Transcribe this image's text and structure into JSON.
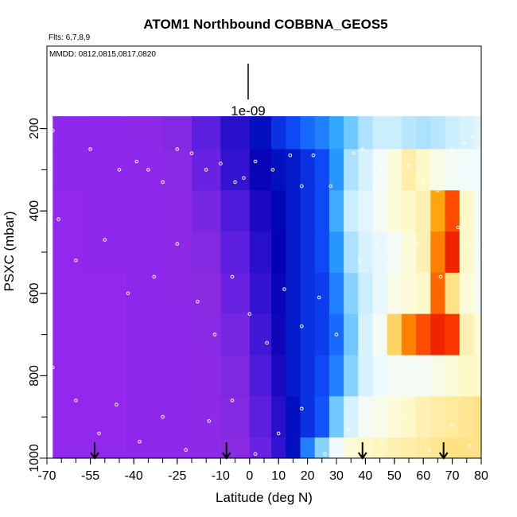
{
  "chart_data": {
    "type": "heatmap",
    "title": "ATOM1 Northbound COBBNA_GEOS5",
    "flights_note": "Flts: 6,7,8,9",
    "dates_note": "MMDD: 0812,0815,0817,0820",
    "xlabel": "Latitude (deg N)",
    "ylabel": "PSXC (mbar)",
    "xlim": [
      -70,
      80
    ],
    "ylim": [
      1000,
      0
    ],
    "x_ticks": [
      -70,
      -55,
      -40,
      -25,
      -10,
      0,
      10,
      20,
      30,
      40,
      50,
      60,
      70,
      80
    ],
    "x_tick_labels": [
      "-70",
      "-55",
      "-40",
      "-25",
      "-10",
      "0",
      "10",
      "20",
      "30",
      "40",
      "50",
      "60",
      "70",
      "80"
    ],
    "y_ticks": [
      200,
      400,
      600,
      800,
      1000
    ],
    "y_tick_labels": [
      "200",
      "400",
      "600",
      "800",
      "1000"
    ],
    "scale_bar_label": "1e-09",
    "flight_marker_latitudes": [
      -53.5,
      -8,
      39,
      67
    ],
    "colorscale": [
      "#9326f0",
      "#8a2be2",
      "#5a1ee0",
      "#2b10cc",
      "#0000b0",
      "#1050ff",
      "#2aa0ff",
      "#70c8ff",
      "#c6ecff",
      "#f0fbff",
      "#fffbd0",
      "#ffe080",
      "#ffa000",
      "#ff4000",
      "#dd0000"
    ],
    "profile": {
      "latitudes": [
        -65,
        -50,
        -35,
        -25,
        -15,
        -5,
        5,
        10,
        15,
        20,
        25,
        30,
        35,
        40,
        45,
        50,
        55,
        60,
        65,
        70,
        75,
        80
      ],
      "levels": [
        {
          "psxc": 200,
          "values": [
            0.02,
            0.03,
            0.04,
            0.08,
            0.14,
            0.22,
            0.3,
            0.33,
            0.35,
            0.38,
            0.4,
            0.44,
            0.5,
            0.55,
            0.58,
            0.58,
            0.56,
            0.55,
            0.56,
            0.58,
            0.6,
            0.62
          ]
        },
        {
          "psxc": 300,
          "values": [
            0.02,
            0.02,
            0.03,
            0.06,
            0.12,
            0.2,
            0.27,
            0.3,
            0.31,
            0.33,
            0.35,
            0.42,
            0.55,
            0.6,
            0.65,
            0.7,
            0.75,
            0.72,
            0.68,
            0.66,
            0.65,
            0.64
          ]
        },
        {
          "psxc": 400,
          "values": [
            0.01,
            0.02,
            0.03,
            0.05,
            0.1,
            0.16,
            0.24,
            0.29,
            0.31,
            0.33,
            0.35,
            0.45,
            0.58,
            0.62,
            0.66,
            0.7,
            0.72,
            0.74,
            0.85,
            0.92,
            0.72,
            0.66
          ]
        },
        {
          "psxc": 500,
          "values": [
            0.01,
            0.02,
            0.02,
            0.04,
            0.08,
            0.14,
            0.22,
            0.28,
            0.31,
            0.33,
            0.35,
            0.42,
            0.55,
            0.6,
            0.63,
            0.66,
            0.7,
            0.74,
            0.88,
            0.96,
            0.72,
            0.66
          ]
        },
        {
          "psxc": 600,
          "values": [
            0.01,
            0.01,
            0.02,
            0.04,
            0.07,
            0.12,
            0.2,
            0.27,
            0.31,
            0.33,
            0.34,
            0.4,
            0.52,
            0.58,
            0.63,
            0.68,
            0.7,
            0.72,
            0.9,
            0.78,
            0.7,
            0.66
          ]
        },
        {
          "psxc": 700,
          "values": [
            0.01,
            0.01,
            0.02,
            0.03,
            0.06,
            0.1,
            0.18,
            0.26,
            0.31,
            0.33,
            0.34,
            0.38,
            0.5,
            0.6,
            0.66,
            0.8,
            0.88,
            0.92,
            0.96,
            0.94,
            0.74,
            0.7
          ]
        },
        {
          "psxc": 800,
          "values": [
            0.01,
            0.01,
            0.02,
            0.03,
            0.05,
            0.09,
            0.16,
            0.24,
            0.31,
            0.33,
            0.35,
            0.4,
            0.52,
            0.6,
            0.64,
            0.66,
            0.66,
            0.66,
            0.68,
            0.7,
            0.72,
            0.72
          ]
        },
        {
          "psxc": 900,
          "values": [
            0.01,
            0.01,
            0.02,
            0.03,
            0.05,
            0.08,
            0.14,
            0.22,
            0.3,
            0.33,
            0.36,
            0.5,
            0.6,
            0.66,
            0.68,
            0.7,
            0.72,
            0.74,
            0.75,
            0.76,
            0.77,
            0.78
          ]
        },
        {
          "psxc": 1000,
          "values": [
            0.01,
            0.01,
            0.02,
            0.03,
            0.04,
            0.07,
            0.12,
            0.2,
            0.3,
            0.4,
            0.52,
            0.64,
            0.7,
            0.72,
            0.73,
            0.74,
            0.75,
            0.76,
            0.77,
            0.78,
            0.78,
            0.78
          ]
        }
      ]
    },
    "flight_tracks": [
      {
        "lat": [
          -68,
          -55,
          -45,
          -39,
          -35,
          -30,
          -25,
          -20,
          -15,
          -10,
          -5,
          -2,
          2,
          8,
          14,
          18,
          22,
          28,
          36,
          39,
          45,
          50,
          55,
          60,
          65,
          70,
          74,
          77
        ],
        "psxc": [
          205,
          250,
          300,
          280,
          300,
          330,
          250,
          260,
          300,
          285,
          330,
          320,
          280,
          300,
          265,
          340,
          265,
          340,
          260,
          250,
          300,
          290,
          290,
          330,
          350,
          250,
          235,
          220
        ]
      },
      {
        "lat": [
          -66,
          -60,
          -50,
          -42,
          -33,
          -25,
          -18,
          -12,
          -6,
          0,
          6,
          12,
          18,
          24,
          30,
          38,
          44,
          50,
          58,
          66,
          72,
          76
        ],
        "psxc": [
          420,
          520,
          470,
          600,
          560,
          480,
          620,
          700,
          560,
          650,
          720,
          590,
          680,
          610,
          700,
          520,
          480,
          520,
          480,
          560,
          440,
          480
        ]
      },
      {
        "lat": [
          -68,
          -60,
          -52,
          -46,
          -38,
          -30,
          -22,
          -14,
          -6,
          2,
          10,
          18,
          26,
          34,
          40,
          46,
          54,
          62,
          70,
          76
        ],
        "psxc": [
          780,
          860,
          940,
          870,
          960,
          900,
          980,
          910,
          860,
          990,
          940,
          880,
          990,
          930,
          870,
          960,
          900,
          980,
          920,
          970
        ]
      }
    ]
  }
}
